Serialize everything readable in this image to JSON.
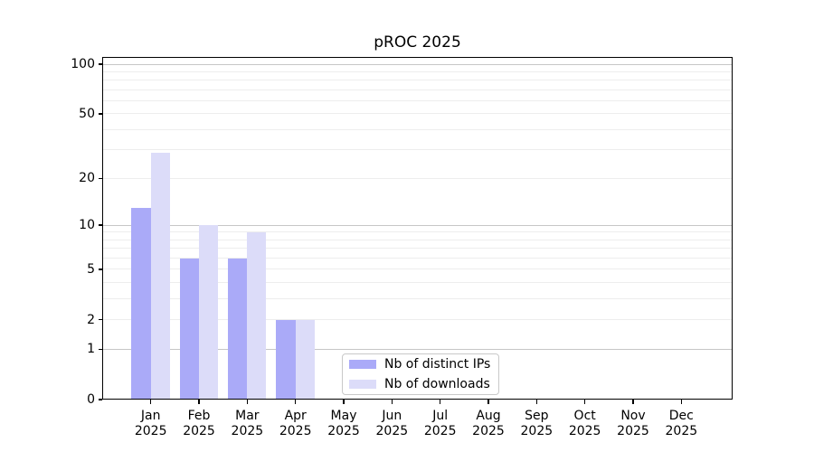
{
  "chart_data": {
    "type": "bar",
    "title": "pROC 2025",
    "categories": [
      "Jan",
      "Feb",
      "Mar",
      "Apr",
      "May",
      "Jun",
      "Jul",
      "Aug",
      "Sep",
      "Oct",
      "Nov",
      "Dec"
    ],
    "year_label": "2025",
    "series": [
      {
        "name": "Nb of distinct IPs",
        "color": "#aaaaf8",
        "values": [
          13,
          6,
          6,
          2,
          0,
          0,
          0,
          0,
          0,
          0,
          0,
          0
        ]
      },
      {
        "name": "Nb of downloads",
        "color": "#dcdcf9",
        "values": [
          29,
          10,
          9,
          2,
          0,
          0,
          0,
          0,
          0,
          0,
          0,
          0
        ]
      }
    ],
    "y_scale": "log10(value+1)",
    "ylim": [
      0,
      111
    ],
    "y_ticks": [
      100,
      50,
      20,
      10,
      5,
      2,
      1,
      0
    ],
    "grid": {
      "major": [
        1,
        10,
        100
      ],
      "minor": [
        2,
        3,
        4,
        5,
        6,
        7,
        8,
        9,
        20,
        30,
        40,
        50,
        60,
        70,
        80,
        90
      ]
    },
    "legend": {
      "position": "lower center",
      "items": [
        "Nb of distinct IPs",
        "Nb of downloads"
      ]
    }
  }
}
